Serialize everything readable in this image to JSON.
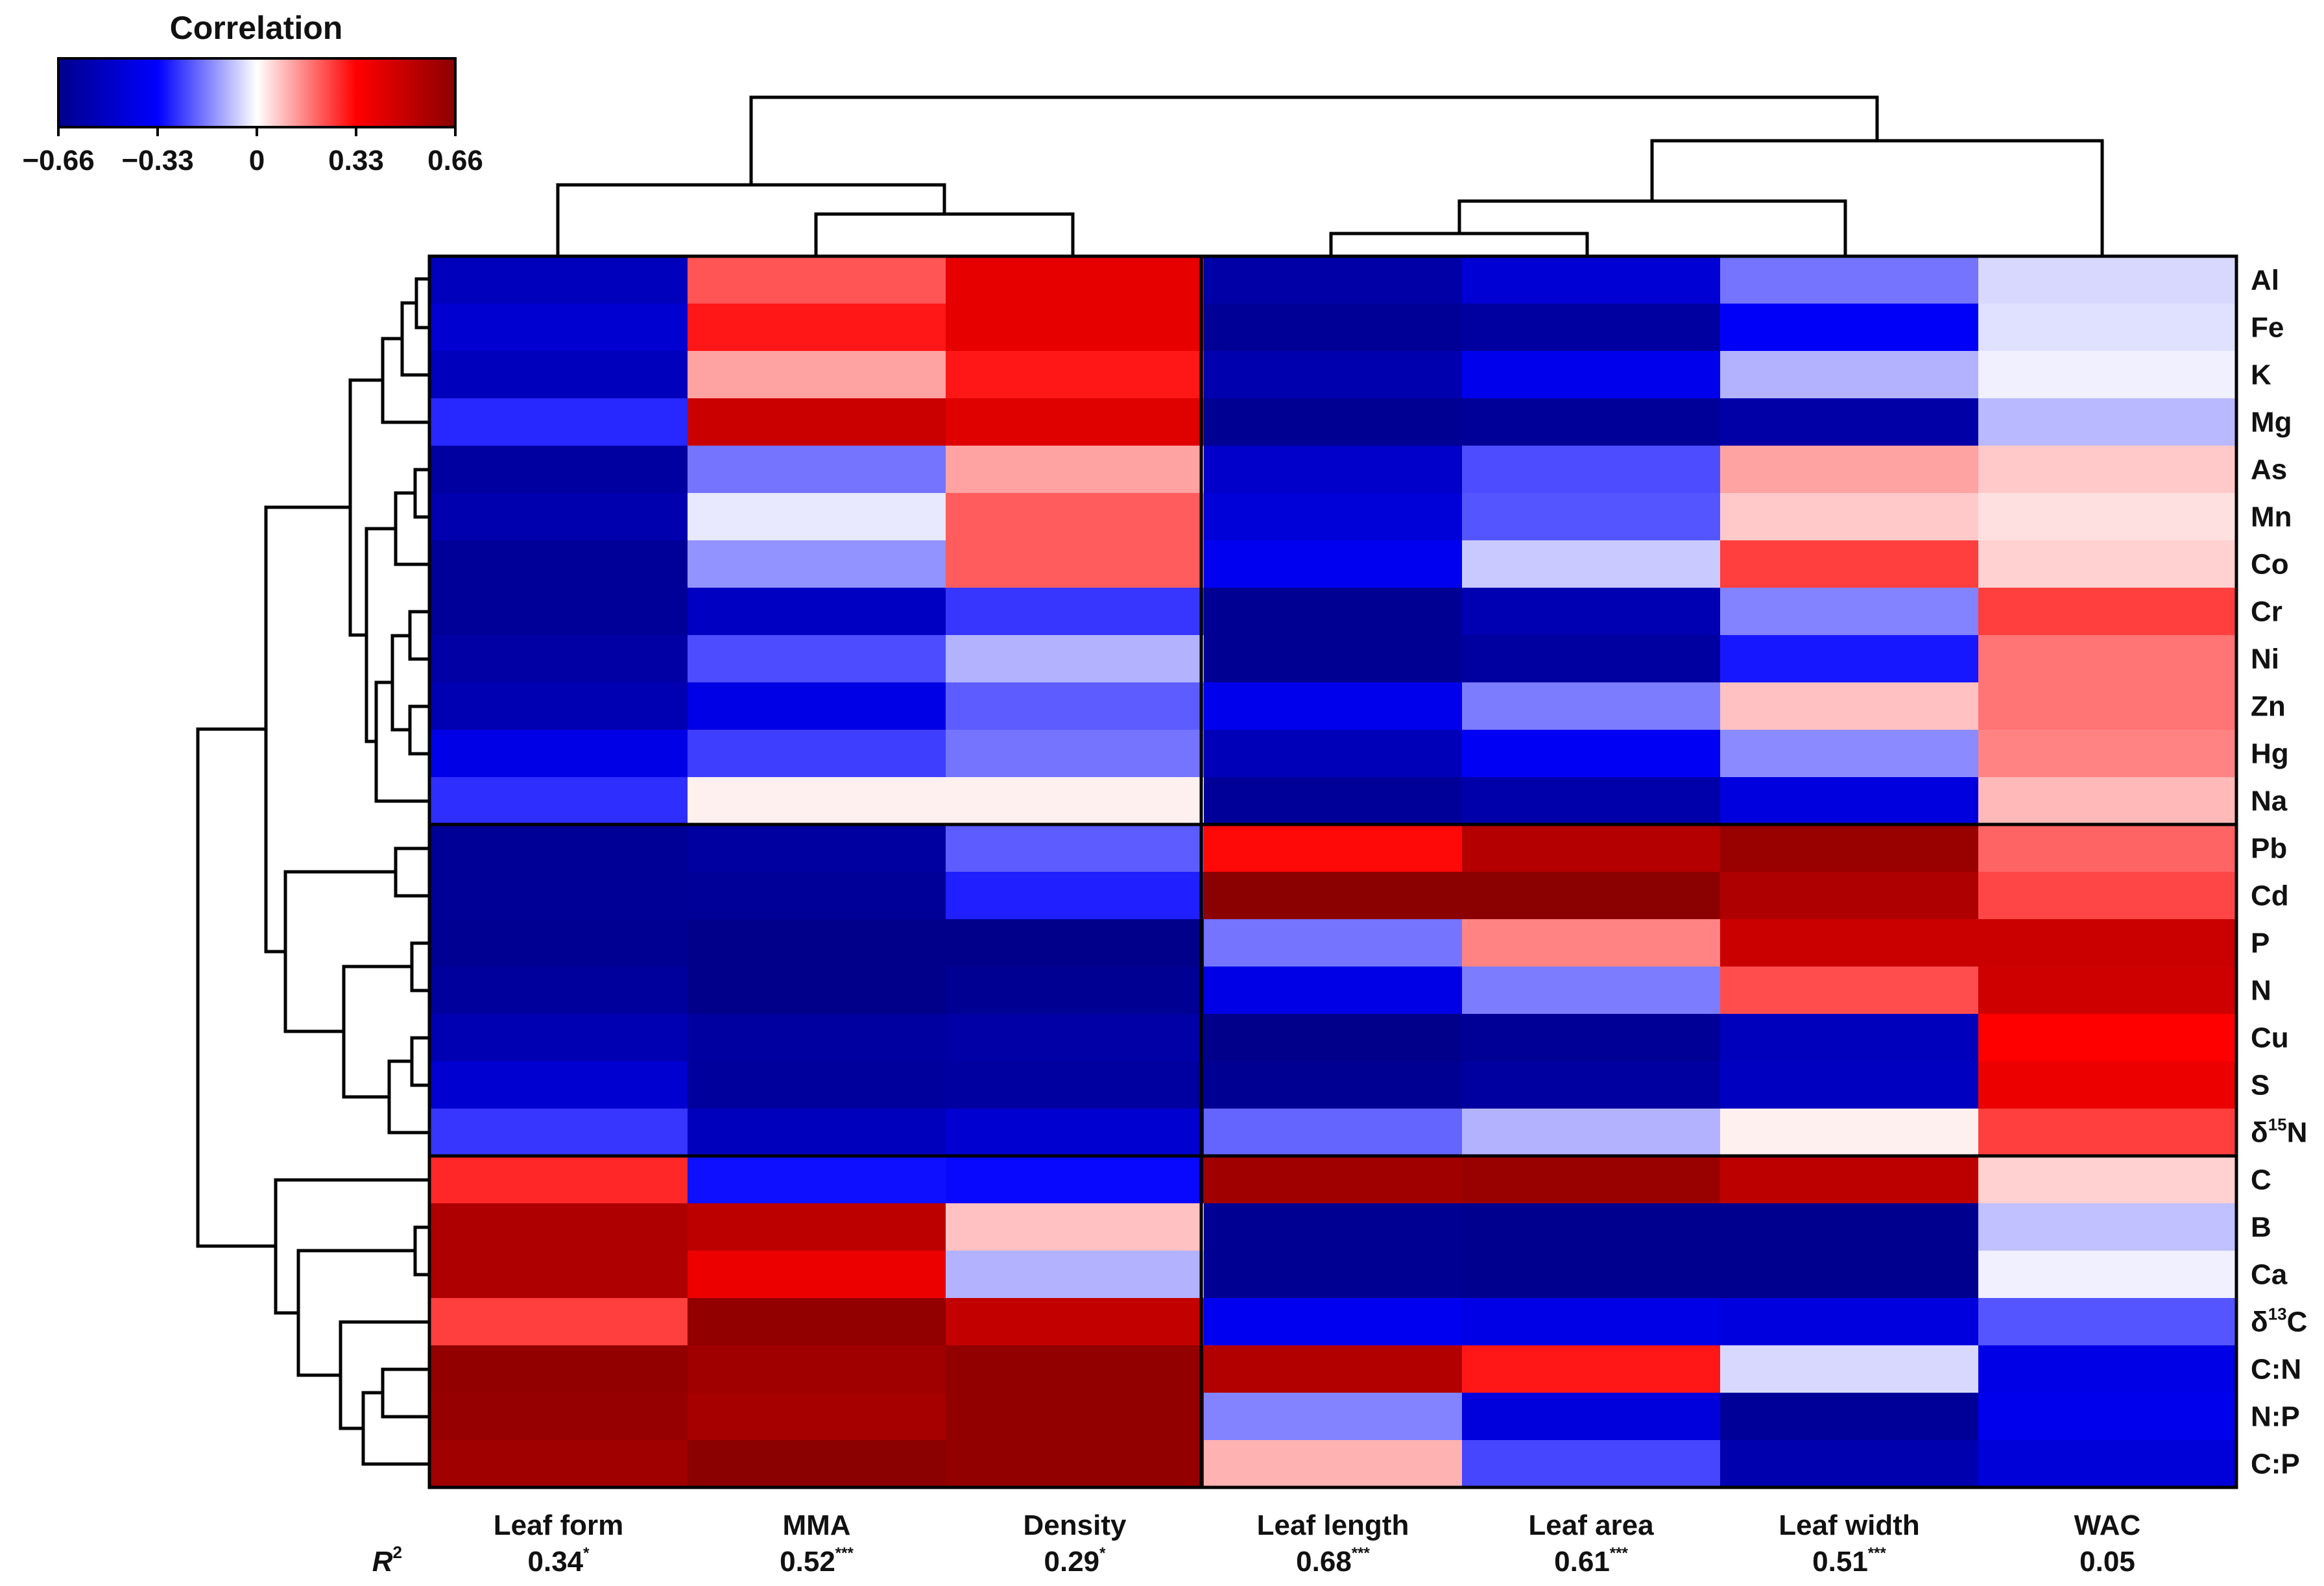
{
  "chart_data": {
    "type": "heatmap",
    "title": "",
    "colorbar": {
      "title": "Correlation",
      "min": -0.66,
      "max": 0.66,
      "ticks": [
        -0.66,
        -0.33,
        0,
        0.33,
        0.66
      ],
      "tick_labels": [
        "−0.66",
        "−0.33",
        "0",
        "0.33",
        "0.66"
      ],
      "colors": {
        "negative": "#00008b",
        "mid_negative": "#0000ff",
        "zero": "#ffffff",
        "mid_positive": "#ff0000",
        "positive": "#8b0000"
      }
    },
    "columns": [
      "Leaf form",
      "MMA",
      "Density",
      "Leaf length",
      "Leaf area",
      "Leaf width",
      "WAC"
    ],
    "r2_label": "R",
    "r2_sup": "2",
    "r2": [
      {
        "value": "0.34",
        "sig": "*"
      },
      {
        "value": "0.52",
        "sig": "***"
      },
      {
        "value": "0.29",
        "sig": "*"
      },
      {
        "value": "0.68",
        "sig": "***"
      },
      {
        "value": "0.61",
        "sig": "***"
      },
      {
        "value": "0.51",
        "sig": "***"
      },
      {
        "value": "0.05",
        "sig": ""
      }
    ],
    "rows": [
      {
        "pre": "",
        "sup": "",
        "post": "Al"
      },
      {
        "pre": "",
        "sup": "",
        "post": "Fe"
      },
      {
        "pre": "",
        "sup": "",
        "post": "K"
      },
      {
        "pre": "",
        "sup": "",
        "post": "Mg"
      },
      {
        "pre": "",
        "sup": "",
        "post": "As"
      },
      {
        "pre": "",
        "sup": "",
        "post": "Mn"
      },
      {
        "pre": "",
        "sup": "",
        "post": "Co"
      },
      {
        "pre": "",
        "sup": "",
        "post": "Cr"
      },
      {
        "pre": "",
        "sup": "",
        "post": "Ni"
      },
      {
        "pre": "",
        "sup": "",
        "post": "Zn"
      },
      {
        "pre": "",
        "sup": "",
        "post": "Hg"
      },
      {
        "pre": "",
        "sup": "",
        "post": "Na"
      },
      {
        "pre": "",
        "sup": "",
        "post": "Pb"
      },
      {
        "pre": "",
        "sup": "",
        "post": "Cd"
      },
      {
        "pre": "",
        "sup": "",
        "post": "P"
      },
      {
        "pre": "",
        "sup": "",
        "post": "N"
      },
      {
        "pre": "",
        "sup": "",
        "post": "Cu"
      },
      {
        "pre": "",
        "sup": "",
        "post": "S"
      },
      {
        "pre": "δ",
        "sup": "15",
        "post": "N"
      },
      {
        "pre": "",
        "sup": "",
        "post": "C"
      },
      {
        "pre": "",
        "sup": "",
        "post": "B"
      },
      {
        "pre": "",
        "sup": "",
        "post": "Ca"
      },
      {
        "pre": "δ",
        "sup": "13",
        "post": "C"
      },
      {
        "pre": "",
        "sup": "",
        "post": "C:N"
      },
      {
        "pre": "",
        "sup": "",
        "post": "N:P"
      },
      {
        "pre": "",
        "sup": "",
        "post": "C:P"
      }
    ],
    "values": [
      [
        -0.52,
        0.22,
        0.4,
        -0.58,
        -0.45,
        -0.18,
        -0.05
      ],
      [
        -0.46,
        0.3,
        0.4,
        -0.63,
        -0.6,
        -0.35,
        -0.04
      ],
      [
        -0.52,
        0.12,
        0.3,
        -0.56,
        -0.38,
        -0.1,
        -0.02
      ],
      [
        -0.28,
        0.48,
        0.42,
        -0.64,
        -0.62,
        -0.58,
        -0.09
      ],
      [
        -0.6,
        -0.18,
        0.12,
        -0.48,
        -0.23,
        0.12,
        0.07
      ],
      [
        -0.56,
        -0.03,
        0.21,
        -0.44,
        -0.22,
        0.07,
        0.04
      ],
      [
        -0.62,
        -0.14,
        0.21,
        -0.37,
        -0.07,
        0.25,
        0.06
      ],
      [
        -0.62,
        -0.5,
        -0.26,
        -0.64,
        -0.55,
        -0.16,
        0.25
      ],
      [
        -0.59,
        -0.23,
        -0.1,
        -0.64,
        -0.6,
        -0.3,
        0.18
      ],
      [
        -0.55,
        -0.4,
        -0.21,
        -0.38,
        -0.17,
        0.08,
        0.18
      ],
      [
        -0.4,
        -0.25,
        -0.18,
        -0.53,
        -0.36,
        -0.15,
        0.16
      ],
      [
        -0.27,
        0.02,
        0.02,
        -0.62,
        -0.57,
        -0.42,
        0.09
      ],
      [
        -0.63,
        -0.6,
        -0.21,
        0.32,
        0.54,
        0.62,
        0.2
      ],
      [
        -0.63,
        -0.62,
        -0.29,
        0.66,
        0.66,
        0.56,
        0.24
      ],
      [
        -0.64,
        -0.66,
        -0.66,
        -0.18,
        0.16,
        0.48,
        0.48
      ],
      [
        -0.61,
        -0.66,
        -0.64,
        -0.4,
        -0.17,
        0.23,
        0.47
      ],
      [
        -0.55,
        -0.6,
        -0.58,
        -0.66,
        -0.63,
        -0.52,
        0.33
      ],
      [
        -0.46,
        -0.61,
        -0.6,
        -0.64,
        -0.6,
        -0.51,
        0.38
      ],
      [
        -0.26,
        -0.52,
        -0.46,
        -0.2,
        -0.1,
        0.02,
        0.25
      ],
      [
        0.28,
        -0.31,
        -0.32,
        0.6,
        0.62,
        0.52,
        0.06
      ],
      [
        0.56,
        0.52,
        0.08,
        -0.64,
        -0.65,
        -0.65,
        -0.08
      ],
      [
        0.56,
        0.38,
        -0.1,
        -0.64,
        -0.65,
        -0.65,
        -0.02
      ],
      [
        0.25,
        0.64,
        0.5,
        -0.37,
        -0.4,
        -0.42,
        -0.22
      ],
      [
        0.64,
        0.6,
        0.64,
        0.55,
        0.3,
        -0.05,
        -0.4
      ],
      [
        0.63,
        0.58,
        0.64,
        -0.16,
        -0.43,
        -0.62,
        -0.38
      ],
      [
        0.6,
        0.66,
        0.64,
        0.1,
        -0.24,
        -0.56,
        -0.44
      ]
    ],
    "column_order_note": "columns clustered into two groups (Leaf form/MMA/Density vs Leaf length/Leaf area/Leaf width/WAC)",
    "row_groups": [
      [
        "Al",
        "Fe",
        "K",
        "Mg",
        "As",
        "Mn",
        "Co",
        "Cr",
        "Ni",
        "Zn",
        "Hg",
        "Na"
      ],
      [
        "Pb",
        "Cd",
        "P",
        "N",
        "Cu",
        "S",
        "δ15N"
      ],
      [
        "C",
        "B",
        "Ca",
        "δ13C",
        "C:N",
        "N:P",
        "C:P"
      ]
    ],
    "column_groups": [
      [
        "Leaf form",
        "MMA",
        "Density"
      ],
      [
        "Leaf length",
        "Leaf area",
        "Leaf width",
        "WAC"
      ]
    ]
  }
}
